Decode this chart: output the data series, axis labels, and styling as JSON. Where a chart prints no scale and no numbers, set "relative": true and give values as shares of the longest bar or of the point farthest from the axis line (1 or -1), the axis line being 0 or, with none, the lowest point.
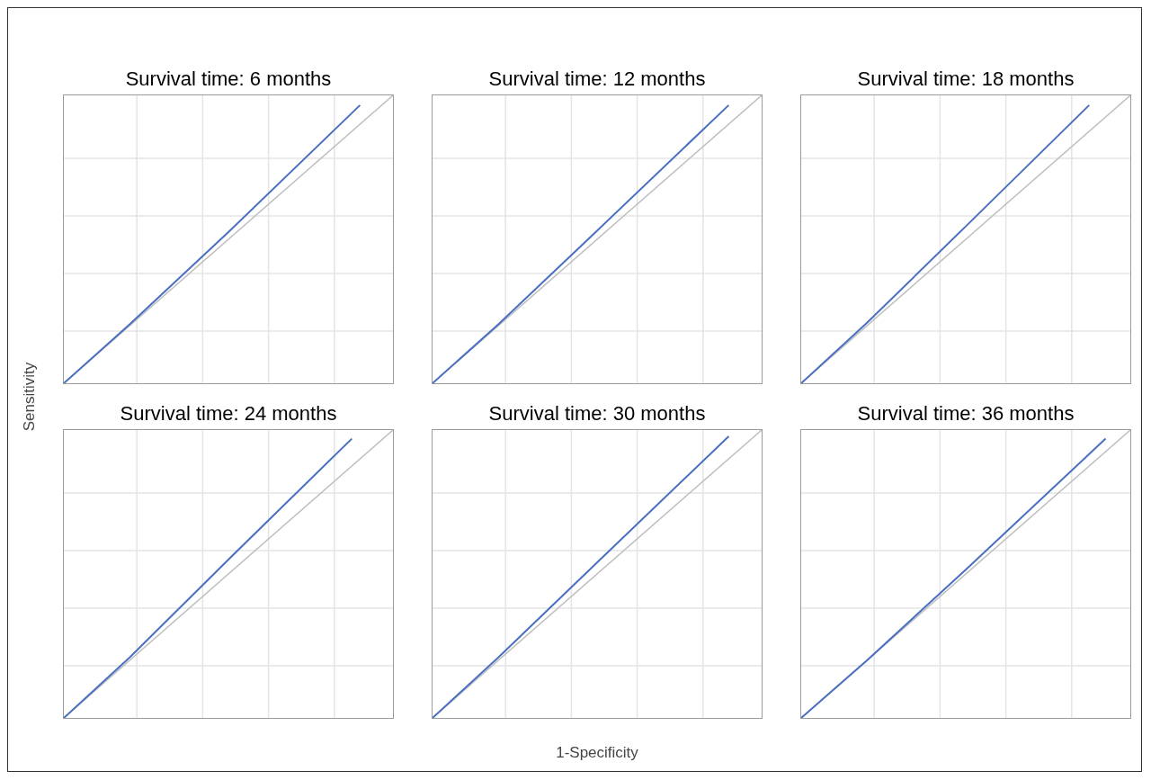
{
  "chart_data": [
    {
      "type": "line",
      "title": "Survival time: 6 months",
      "relative": true,
      "grid": true,
      "categories": [
        null,
        null,
        null,
        null,
        null,
        null,
        null,
        null,
        null,
        null,
        null,
        null,
        null,
        null,
        null,
        null,
        null,
        null,
        null,
        null,
        null,
        null,
        null,
        null,
        null,
        null,
        null,
        null,
        null,
        null,
        null,
        null,
        null,
        null,
        null,
        null,
        null,
        null,
        null,
        null,
        null
      ],
      "series": [
        {
          "color": "#bfbfbf",
          "values": [
            0,
            null,
            null,
            null,
            null,
            null,
            null,
            null,
            null,
            null,
            null,
            null,
            null,
            null,
            null,
            null,
            null,
            null,
            null,
            null,
            null,
            null,
            null,
            null,
            null,
            null,
            null,
            null,
            null,
            null,
            null,
            null,
            null,
            null,
            null,
            null,
            null,
            null,
            null,
            null,
            1
          ]
        },
        {
          "color": "#4a6fc1",
          "values": [
            0,
            null,
            null,
            null,
            null,
            null,
            null,
            null,
            0.205,
            null,
            null,
            null,
            null,
            null,
            null,
            null,
            null,
            null,
            null,
            null,
            0.525,
            null,
            null,
            null,
            null,
            null,
            null,
            null,
            null,
            null,
            null,
            null,
            null,
            null,
            null,
            null,
            0.966,
            null,
            null,
            null,
            null
          ]
        }
      ]
    },
    {
      "type": "line",
      "title": "Survival time: 12 months",
      "relative": true,
      "grid": true,
      "categories": [
        null,
        null,
        null,
        null,
        null,
        null,
        null,
        null,
        null,
        null,
        null,
        null,
        null,
        null,
        null,
        null,
        null,
        null,
        null,
        null,
        null,
        null,
        null,
        null,
        null,
        null,
        null,
        null,
        null,
        null,
        null,
        null,
        null,
        null,
        null,
        null,
        null,
        null,
        null,
        null,
        null
      ],
      "series": [
        {
          "color": "#bfbfbf",
          "values": [
            0,
            null,
            null,
            null,
            null,
            null,
            null,
            null,
            null,
            null,
            null,
            null,
            null,
            null,
            null,
            null,
            null,
            null,
            null,
            null,
            null,
            null,
            null,
            null,
            null,
            null,
            null,
            null,
            null,
            null,
            null,
            null,
            null,
            null,
            null,
            null,
            null,
            null,
            null,
            null,
            1
          ]
        },
        {
          "color": "#4a6fc1",
          "values": [
            0,
            null,
            null,
            null,
            null,
            null,
            null,
            null,
            0.205,
            null,
            null,
            null,
            null,
            null,
            null,
            null,
            null,
            null,
            null,
            null,
            0.53,
            null,
            null,
            null,
            null,
            null,
            null,
            null,
            null,
            null,
            null,
            null,
            null,
            null,
            null,
            null,
            0.966,
            null,
            null,
            null,
            null
          ]
        }
      ]
    },
    {
      "type": "line",
      "title": "Survival time: 18 months",
      "relative": true,
      "grid": true,
      "categories": [
        null,
        null,
        null,
        null,
        null,
        null,
        null,
        null,
        null,
        null,
        null,
        null,
        null,
        null,
        null,
        null,
        null,
        null,
        null,
        null,
        null,
        null,
        null,
        null,
        null,
        null,
        null,
        null,
        null,
        null,
        null,
        null,
        null,
        null,
        null,
        null,
        null,
        null,
        null,
        null,
        null
      ],
      "series": [
        {
          "color": "#bfbfbf",
          "values": [
            0,
            null,
            null,
            null,
            null,
            null,
            null,
            null,
            null,
            null,
            null,
            null,
            null,
            null,
            null,
            null,
            null,
            null,
            null,
            null,
            null,
            null,
            null,
            null,
            null,
            null,
            null,
            null,
            null,
            null,
            null,
            null,
            null,
            null,
            null,
            null,
            null,
            null,
            null,
            null,
            1
          ]
        },
        {
          "color": "#4a6fc1",
          "values": [
            0,
            null,
            null,
            null,
            null,
            null,
            null,
            null,
            0.21,
            null,
            null,
            null,
            null,
            null,
            null,
            null,
            null,
            null,
            null,
            null,
            0.545,
            null,
            null,
            null,
            null,
            null,
            null,
            null,
            null,
            null,
            null,
            null,
            null,
            null,
            null,
            0.966,
            null,
            null,
            null,
            null,
            null
          ]
        }
      ]
    },
    {
      "type": "line",
      "title": "Survival time: 24 months",
      "ylabel": "Sensitivity",
      "relative": true,
      "grid": true,
      "categories": [
        null,
        null,
        null,
        null,
        null,
        null,
        null,
        null,
        null,
        null,
        null,
        null,
        null,
        null,
        null,
        null,
        null,
        null,
        null,
        null,
        null,
        null,
        null,
        null,
        null,
        null,
        null,
        null,
        null,
        null,
        null,
        null,
        null,
        null,
        null,
        null,
        null,
        null,
        null,
        null,
        null
      ],
      "series": [
        {
          "color": "#bfbfbf",
          "values": [
            0,
            null,
            null,
            null,
            null,
            null,
            null,
            null,
            null,
            null,
            null,
            null,
            null,
            null,
            null,
            null,
            null,
            null,
            null,
            null,
            null,
            null,
            null,
            null,
            null,
            null,
            null,
            null,
            null,
            null,
            null,
            null,
            null,
            null,
            null,
            null,
            null,
            null,
            null,
            null,
            1
          ]
        },
        {
          "color": "#4a6fc1",
          "values": [
            0,
            null,
            null,
            null,
            null,
            null,
            null,
            null,
            0.21,
            null,
            null,
            null,
            null,
            null,
            null,
            null,
            null,
            null,
            null,
            null,
            0.55,
            null,
            null,
            null,
            null,
            null,
            null,
            null,
            null,
            null,
            null,
            null,
            null,
            null,
            null,
            0.97,
            null,
            null,
            null,
            null,
            null
          ]
        }
      ]
    },
    {
      "type": "line",
      "title": "Survival time: 30 months",
      "xlabel": "1-Specificity",
      "relative": true,
      "grid": true,
      "categories": [
        null,
        null,
        null,
        null,
        null,
        null,
        null,
        null,
        null,
        null,
        null,
        null,
        null,
        null,
        null,
        null,
        null,
        null,
        null,
        null,
        null,
        null,
        null,
        null,
        null,
        null,
        null,
        null,
        null,
        null,
        null,
        null,
        null,
        null,
        null,
        null,
        null,
        null,
        null,
        null,
        null
      ],
      "series": [
        {
          "color": "#bfbfbf",
          "values": [
            0,
            null,
            null,
            null,
            null,
            null,
            null,
            null,
            null,
            null,
            null,
            null,
            null,
            null,
            null,
            null,
            null,
            null,
            null,
            null,
            null,
            null,
            null,
            null,
            null,
            null,
            null,
            null,
            null,
            null,
            null,
            null,
            null,
            null,
            null,
            null,
            null,
            null,
            null,
            null,
            1
          ]
        },
        {
          "color": "#4a6fc1",
          "values": [
            0,
            null,
            null,
            null,
            null,
            null,
            null,
            null,
            0.21,
            null,
            null,
            null,
            null,
            null,
            null,
            null,
            null,
            null,
            null,
            null,
            0.54,
            null,
            null,
            null,
            null,
            null,
            null,
            null,
            null,
            null,
            null,
            null,
            null,
            null,
            null,
            null,
            0.978,
            null,
            null,
            null,
            null
          ]
        }
      ]
    },
    {
      "type": "line",
      "title": "Survival time: 36 months",
      "relative": true,
      "grid": true,
      "categories": [
        null,
        null,
        null,
        null,
        null,
        null,
        null,
        null,
        null,
        null,
        null,
        null,
        null,
        null,
        null,
        null,
        null,
        null,
        null,
        null,
        null,
        null,
        null,
        null,
        null,
        null,
        null,
        null,
        null,
        null,
        null,
        null,
        null,
        null,
        null,
        null,
        null,
        null,
        null,
        null,
        null
      ],
      "series": [
        {
          "color": "#bfbfbf",
          "values": [
            0,
            null,
            null,
            null,
            null,
            null,
            null,
            null,
            null,
            null,
            null,
            null,
            null,
            null,
            null,
            null,
            null,
            null,
            null,
            null,
            null,
            null,
            null,
            null,
            null,
            null,
            null,
            null,
            null,
            null,
            null,
            null,
            null,
            null,
            null,
            null,
            null,
            null,
            null,
            null,
            1
          ]
        },
        {
          "color": "#4a6fc1",
          "values": [
            0,
            null,
            null,
            null,
            null,
            null,
            null,
            null,
            0.2,
            null,
            null,
            null,
            null,
            null,
            null,
            null,
            null,
            null,
            null,
            null,
            0.515,
            null,
            null,
            null,
            null,
            null,
            null,
            null,
            null,
            null,
            null,
            null,
            null,
            null,
            null,
            null,
            null,
            0.97,
            null,
            null,
            null
          ]
        }
      ]
    }
  ]
}
